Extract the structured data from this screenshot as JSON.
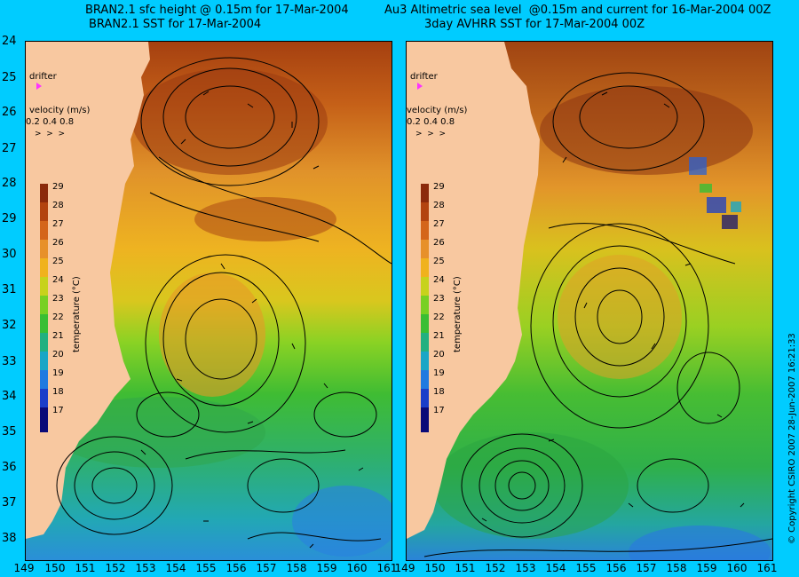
{
  "titles": {
    "left_line1": "BRAN2.1 sfc height @ 0.15m for 17-Mar-2004",
    "left_line2": "BRAN2.1 SST for 17-Mar-2004",
    "right_line1": "Au3 Altimetric sea level  @0.15m and current for 16-Mar-2004 00Z",
    "right_line2": "3day AVHRR SST for 17-Mar-2004 00Z"
  },
  "y_axis_ticks": [
    "24",
    "25",
    "26",
    "27",
    "28",
    "29",
    "30",
    "31",
    "32",
    "33",
    "34",
    "35",
    "36",
    "37",
    "38"
  ],
  "x_axis_ticks": [
    "149",
    "150",
    "151",
    "152",
    "153",
    "154",
    "155",
    "156",
    "157",
    "158",
    "159",
    "160",
    "161"
  ],
  "right_x_axis_ticks": [
    "149",
    "150",
    "151",
    "152",
    "153",
    "154",
    "155",
    "156",
    "157",
    "158",
    "159",
    "160",
    "161"
  ],
  "overlay": {
    "drifter_label": "drifter",
    "velocity_label": "velocity (m/s)",
    "velocity_scale": "0.2 0.4 0.8"
  },
  "colorbar": {
    "title": "temperature (°C)",
    "labels": [
      "29",
      "28",
      "27",
      "26",
      "25",
      "24",
      "23",
      "22",
      "21",
      "20",
      "19",
      "18",
      "17"
    ],
    "colors": [
      "#8b2a0b",
      "#b3440f",
      "#d4651a",
      "#e7902a",
      "#f0b21d",
      "#c7d21c",
      "#78d023",
      "#39be34",
      "#22b080",
      "#1aa6c6",
      "#207ae0",
      "#1b3ec9",
      "#0a0a78"
    ]
  },
  "copyright": "© Copyright CSIRO 2007   28-Jun-2007 16:21:33",
  "colors": {
    "background": "#00ccff",
    "land": "#f8c8a0",
    "drifter_marker": "#ff33ff"
  }
}
